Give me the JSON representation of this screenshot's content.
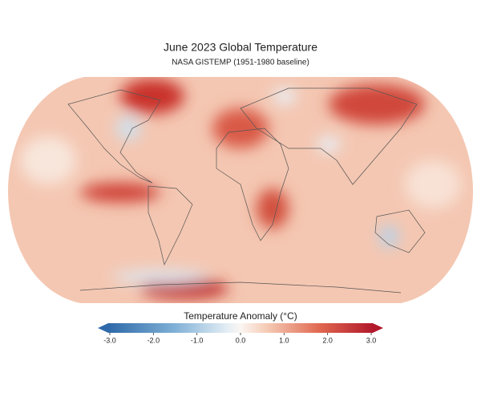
{
  "title": "June 2023 Global Temperature",
  "subtitle": "NASA GISTEMP (1951-1980 baseline)",
  "colorbar": {
    "label": "Temperature Anomaly (°C)",
    "lim": [
      -3,
      3
    ],
    "ticks": [
      {
        "value": -3,
        "label": "-3.0"
      },
      {
        "value": -2,
        "label": "-2.0"
      },
      {
        "value": -1,
        "label": "-1.0"
      },
      {
        "value": 0,
        "label": "0.0"
      },
      {
        "value": 1,
        "label": "1.0"
      },
      {
        "value": 2,
        "label": "2.0"
      },
      {
        "value": 3,
        "label": "3.0"
      }
    ]
  }
}
